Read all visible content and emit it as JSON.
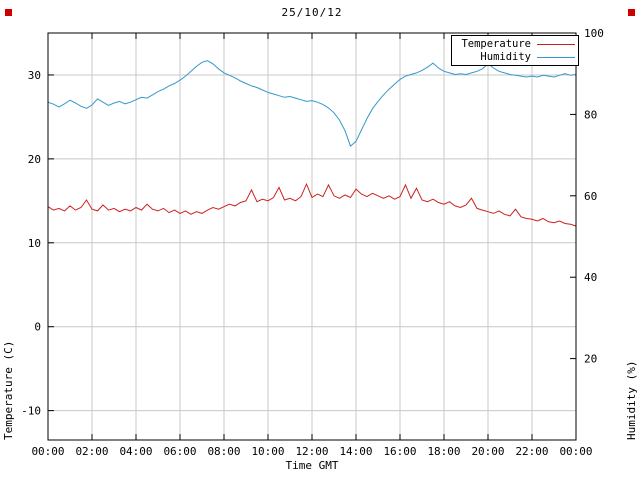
{
  "decor": {
    "corner_marker_color": "#cc0000"
  },
  "chart_data": {
    "type": "line",
    "title": "25/10/12",
    "xlabel": "Time GMT",
    "ylabel_left": "Temperature (C)",
    "ylabel_right": "Humidity (%)",
    "x_ticks": [
      "00:00",
      "02:00",
      "04:00",
      "06:00",
      "08:00",
      "10:00",
      "12:00",
      "14:00",
      "16:00",
      "18:00",
      "20:00",
      "22:00",
      "00:00"
    ],
    "y_left_ticks": [
      -10,
      0,
      10,
      20,
      30
    ],
    "y_right_ticks": [
      20,
      40,
      60,
      80,
      100
    ],
    "y_left_range": [
      -13.5,
      35
    ],
    "y_right_range": [
      0,
      100
    ],
    "sample_interval_minutes": 15,
    "grid": true,
    "legend_position": "top-right",
    "colors": {
      "grid": "#c8c8c8",
      "axis": "#000000"
    },
    "series": [
      {
        "name": "Temperature",
        "axis": "left",
        "color": "#cc2222",
        "values": [
          14.3,
          13.9,
          14.1,
          13.8,
          14.4,
          13.9,
          14.2,
          15.1,
          14.0,
          13.8,
          14.5,
          13.9,
          14.1,
          13.7,
          14.0,
          13.8,
          14.2,
          13.9,
          14.6,
          14.0,
          13.8,
          14.1,
          13.6,
          13.9,
          13.5,
          13.8,
          13.4,
          13.7,
          13.5,
          13.9,
          14.2,
          14.0,
          14.3,
          14.6,
          14.4,
          14.8,
          15.0,
          16.3,
          14.9,
          15.2,
          15.0,
          15.4,
          16.6,
          15.1,
          15.3,
          15.0,
          15.5,
          17.0,
          15.4,
          15.8,
          15.5,
          16.9,
          15.6,
          15.3,
          15.7,
          15.4,
          16.4,
          15.8,
          15.5,
          15.9,
          15.6,
          15.3,
          15.6,
          15.2,
          15.5,
          16.9,
          15.3,
          16.5,
          15.1,
          14.9,
          15.2,
          14.8,
          14.6,
          14.9,
          14.4,
          14.2,
          14.5,
          15.3,
          14.1,
          13.9,
          13.7,
          13.5,
          13.8,
          13.4,
          13.2,
          14.0,
          13.1,
          12.9,
          12.8,
          12.6,
          12.9,
          12.5,
          12.4,
          12.6,
          12.3,
          12.2,
          12.0
        ]
      },
      {
        "name": "Humidity",
        "axis": "right",
        "color": "#3399cc",
        "values": [
          83.0,
          82.5,
          81.8,
          82.6,
          83.5,
          82.8,
          82.0,
          81.5,
          82.3,
          83.8,
          83.0,
          82.2,
          82.8,
          83.2,
          82.6,
          83.0,
          83.6,
          84.2,
          84.0,
          84.8,
          85.6,
          86.2,
          87.0,
          87.6,
          88.4,
          89.4,
          90.6,
          91.8,
          92.8,
          93.2,
          92.4,
          91.2,
          90.2,
          89.6,
          89.0,
          88.2,
          87.6,
          87.0,
          86.6,
          86.0,
          85.4,
          85.0,
          84.6,
          84.2,
          84.4,
          84.0,
          83.6,
          83.2,
          83.4,
          83.0,
          82.4,
          81.6,
          80.4,
          78.6,
          76.0,
          72.2,
          73.4,
          76.2,
          79.0,
          81.4,
          83.2,
          84.8,
          86.2,
          87.4,
          88.6,
          89.4,
          89.8,
          90.2,
          90.8,
          91.6,
          92.6,
          91.4,
          90.6,
          90.2,
          89.8,
          90.0,
          89.8,
          90.2,
          90.6,
          91.2,
          92.4,
          91.4,
          90.6,
          90.2,
          89.8,
          89.6,
          89.4,
          89.2,
          89.4,
          89.2,
          89.6,
          89.4,
          89.2,
          89.6,
          90.0,
          89.6,
          89.8
        ]
      }
    ]
  }
}
